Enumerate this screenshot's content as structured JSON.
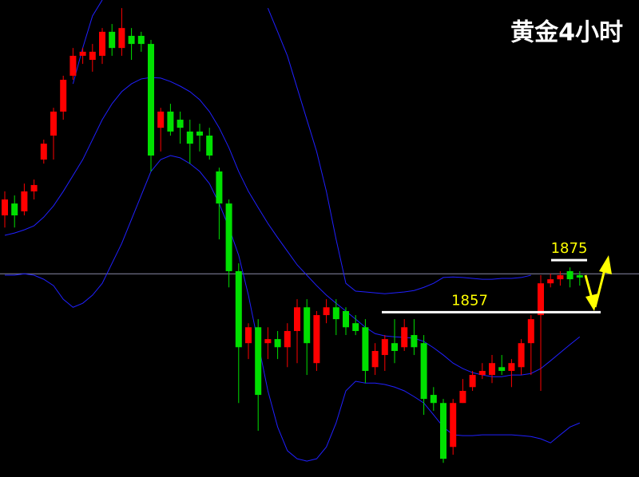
{
  "chart_data": {
    "type": "candlestick",
    "title": "黄金4小时",
    "ylim": [
      1800,
      1965
    ],
    "up_color": "#ff0000",
    "down_color": "#00e000",
    "candles": [
      [
        1890.5,
        1898.8,
        1886.3,
        1896
      ],
      [
        1894.6,
        1897.4,
        1886.3,
        1890.5
      ],
      [
        1891.9,
        1901.5,
        1890.5,
        1898.8
      ],
      [
        1898.8,
        1902.9,
        1896,
        1901
      ],
      [
        1909.8,
        1916.7,
        1908.4,
        1915.3
      ],
      [
        1918.1,
        1927.7,
        1909.8,
        1926.4
      ],
      [
        1926.4,
        1938.8,
        1923.6,
        1937.4
      ],
      [
        1938.8,
        1948.4,
        1937.4,
        1945.7
      ],
      [
        1945.7,
        1948.4,
        1942.9,
        1947.1
      ],
      [
        1944.3,
        1949.8,
        1940.2,
        1947.1
      ],
      [
        1945.7,
        1955.3,
        1942.9,
        1954
      ],
      [
        1954,
        1956.7,
        1945.7,
        1948.4
      ],
      [
        1948.4,
        1962.2,
        1945.7,
        1955.3
      ],
      [
        1952.6,
        1955.3,
        1944.3,
        1949.8
      ],
      [
        1952.6,
        1954,
        1947.1,
        1949.8
      ],
      [
        1949.8,
        1951.2,
        1905.7,
        1911.2
      ],
      [
        1920.8,
        1927.7,
        1912.6,
        1926.4
      ],
      [
        1926.4,
        1929.1,
        1918.1,
        1919.5
      ],
      [
        1923.6,
        1926.4,
        1915.3,
        1920.8
      ],
      [
        1919.5,
        1923.6,
        1908.4,
        1915.3
      ],
      [
        1919.5,
        1922.2,
        1912.6,
        1918.1
      ],
      [
        1918.1,
        1920.8,
        1909.8,
        1911.2
      ],
      [
        1905.7,
        1907,
        1882.2,
        1894.6
      ],
      [
        1894.6,
        1896,
        1865.6,
        1871.2
      ],
      [
        1871.2,
        1873.9,
        1825.6,
        1844.9
      ],
      [
        1846.3,
        1853.2,
        1840.8,
        1851.8
      ],
      [
        1851.8,
        1854.6,
        1816,
        1828.4
      ],
      [
        1846.3,
        1851.8,
        1840.8,
        1847.7
      ],
      [
        1847.7,
        1850.5,
        1840.8,
        1844.9
      ],
      [
        1844.9,
        1853.2,
        1838,
        1850.5
      ],
      [
        1850.5,
        1861.5,
        1839.4,
        1858.7
      ],
      [
        1858.7,
        1861.5,
        1835.3,
        1846.3
      ],
      [
        1839.4,
        1857.4,
        1836.7,
        1856
      ],
      [
        1856,
        1861.5,
        1853.2,
        1858.7
      ],
      [
        1858.7,
        1861.5,
        1849.1,
        1854.6
      ],
      [
        1857.4,
        1858.7,
        1849.1,
        1851.8
      ],
      [
        1853.2,
        1856,
        1849.1,
        1850.5
      ],
      [
        1851.8,
        1854.6,
        1832.5,
        1836.7
      ],
      [
        1838,
        1846.3,
        1835.3,
        1843.6
      ],
      [
        1842.2,
        1849.1,
        1836.7,
        1847.7
      ],
      [
        1846.3,
        1854.6,
        1839.4,
        1843.6
      ],
      [
        1844.9,
        1854.6,
        1843.6,
        1851.8
      ],
      [
        1849.1,
        1854.6,
        1842.2,
        1844.9
      ],
      [
        1846.3,
        1849.1,
        1821.5,
        1827
      ],
      [
        1828.4,
        1831.1,
        1822.9,
        1825.6
      ],
      [
        1825.6,
        1827,
        1804.9,
        1806.3
      ],
      [
        1810.4,
        1827,
        1807.7,
        1825.6
      ],
      [
        1825.6,
        1833.9,
        1825.6,
        1829.8
      ],
      [
        1831.1,
        1836.7,
        1829.8,
        1835.3
      ],
      [
        1835.3,
        1839.4,
        1833.9,
        1836.7
      ],
      [
        1835.3,
        1842.2,
        1832.5,
        1839.4
      ],
      [
        1838,
        1842.2,
        1835.3,
        1836.7
      ],
      [
        1836.7,
        1840.8,
        1831.1,
        1839.4
      ],
      [
        1838,
        1847.7,
        1835.3,
        1846.3
      ],
      [
        1846.3,
        1856,
        1835.3,
        1854.6
      ],
      [
        1856,
        1869.8,
        1829.8,
        1867
      ],
      [
        1867,
        1870.3,
        1865.6,
        1868.4
      ],
      [
        1868.4,
        1871.2,
        1866.2,
        1869.8
      ],
      [
        1871.2,
        1872.5,
        1865.6,
        1868.4
      ],
      [
        1869.8,
        1871.2,
        1866.2,
        1869
      ]
    ],
    "bands": {
      "color": "#2020ff",
      "upper": [
        null,
        null,
        null,
        null,
        null,
        null,
        null,
        1936,
        1948.4,
        1959.5,
        1965,
        null,
        null,
        null,
        null,
        null,
        null,
        null,
        null,
        null,
        null,
        null,
        null,
        null,
        null,
        null,
        null,
        1962.2,
        1954,
        1945.7,
        1934.6,
        1923.6,
        1912.6,
        1898.8,
        1882.2,
        1867,
        1864.3,
        1864,
        1863.7,
        1863.4,
        1863.7,
        1864,
        1864.5,
        1865.6,
        1867,
        1869,
        1869.2,
        1869,
        1868.7,
        1868.4,
        1868.4,
        1868.7,
        1868.7,
        1869,
        1869.8,
        null,
        null,
        null,
        null,
        null
      ],
      "middle": [
        1883.6,
        1884.4,
        1885.5,
        1886.9,
        1889.9,
        1893.8,
        1898.8,
        1904.3,
        1909.8,
        1916.7,
        1923.6,
        1929.1,
        1933.3,
        1936,
        1937.7,
        1938.2,
        1938,
        1936.8,
        1935.2,
        1933.3,
        1930.5,
        1926.4,
        1920.8,
        1913.9,
        1905.7,
        1898.8,
        1893.2,
        1887.7,
        1882.8,
        1878.1,
        1873.4,
        1869.8,
        1866.2,
        1862.9,
        1860.1,
        1857.4,
        1854.6,
        1851.8,
        1849.6,
        1848.8,
        1848.5,
        1848.3,
        1848,
        1846.9,
        1844.7,
        1842.2,
        1839.4,
        1837.5,
        1836.1,
        1835.3,
        1834.7,
        1834.7,
        1835.3,
        1835.3,
        1835.8,
        1837.5,
        1840.2,
        1843,
        1845.8,
        1848.5
      ],
      "lower": [
        1869.8,
        1869.8,
        1870.3,
        1869.8,
        1868.4,
        1866.2,
        1861.5,
        1858.7,
        1860.1,
        1862.9,
        1867,
        1873.9,
        1880.8,
        1889.1,
        1897.4,
        1905.7,
        1909.8,
        1911.2,
        1910.4,
        1908.4,
        1905.7,
        1901.5,
        1894.6,
        1886.3,
        1876.7,
        1862.9,
        1846.3,
        1829.8,
        1817.3,
        1809.1,
        1806.3,
        1805.5,
        1806.3,
        1810.4,
        1818.7,
        1829.8,
        1833.1,
        1832.5,
        1832.5,
        1832,
        1831.1,
        1829.8,
        1827.8,
        1825.6,
        1821.5,
        1817.3,
        1814.6,
        1814.3,
        1814.3,
        1814.6,
        1814.6,
        1814.6,
        1814.6,
        1814.3,
        1814,
        1813.2,
        1811.8,
        1814.6,
        1817.3,
        1818.7
      ]
    },
    "last_price": 1870.3,
    "last_price_color": "#8a8aa8",
    "levels": [
      1857,
      1875
    ],
    "level_line_color": "#ffffff",
    "level_label_color": "#ffff00"
  }
}
